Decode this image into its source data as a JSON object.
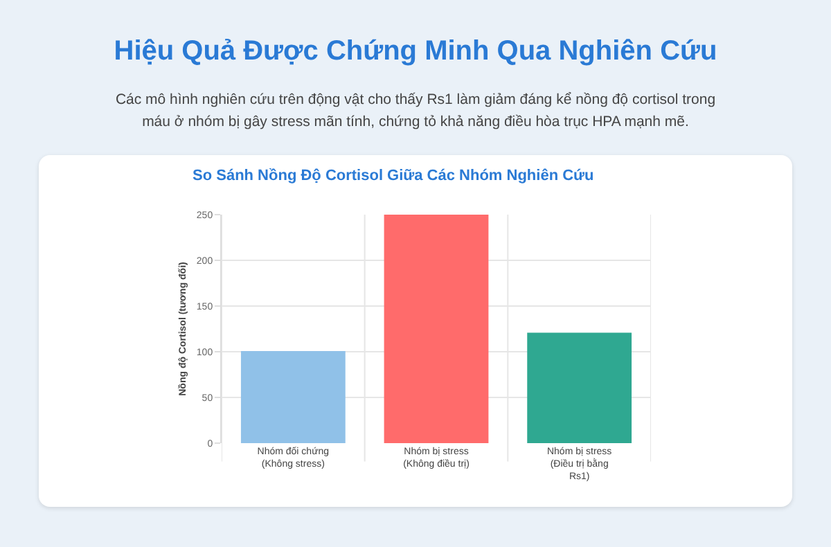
{
  "chart_data": {
    "type": "bar",
    "title": "Hiệu Quả Được Chứng Minh Qua Nghiên Cứu",
    "subtitle": "Các mô hình nghiên cứu trên động vật cho thấy Rs1 làm giảm đáng kể nồng độ cortisol trong máu ở nhóm bị gây stress mãn tính, chứng tỏ khả năng điều hòa trục HPA mạnh mẽ.",
    "annotations": [
      "So Sánh Nồng Độ Cortisol Giữa Các Nhóm Nghiên Cứu"
    ],
    "ylabel": "Nồng độ Cortisol (tương đối)",
    "categories": [
      "Nhóm đối chứng (Không stress)",
      "Nhóm bị stress (Không điều trị)",
      "Nhóm bị stress (Điều trị bằng Rs1)"
    ],
    "values": [
      100,
      250,
      120
    ],
    "colors": [
      "#90c1e8",
      "#ff6b6b",
      "#2fa891"
    ],
    "ylim": [
      0,
      250
    ],
    "yticks": [
      0,
      50,
      100,
      150,
      200,
      250
    ],
    "grid": true,
    "legend": false
  }
}
